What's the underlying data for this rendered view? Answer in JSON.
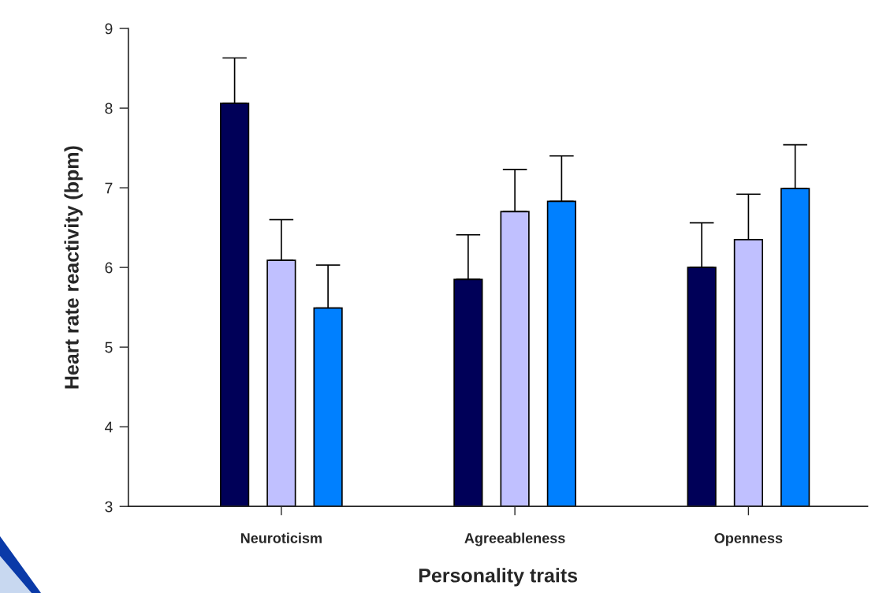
{
  "chart_data": {
    "type": "bar",
    "xlabel": "Personality traits",
    "ylabel": "Heart rate reactivity (bpm)",
    "categories": [
      "Neuroticism",
      "Agreeableness",
      "Openness"
    ],
    "series": [
      {
        "color": "#000058",
        "values": [
          8.06,
          5.85,
          6.0
        ],
        "errors": [
          [
            8.06,
            8.63
          ],
          [
            5.85,
            6.41
          ],
          [
            6.0,
            6.56
          ]
        ]
      },
      {
        "color": "#c0c0ff",
        "values": [
          6.09,
          6.7,
          6.35
        ],
        "errors": [
          [
            6.09,
            6.6
          ],
          [
            6.7,
            7.23
          ],
          [
            6.35,
            6.92
          ]
        ]
      },
      {
        "color": "#0080ff",
        "values": [
          5.49,
          6.83,
          6.99
        ],
        "errors": [
          [
            5.49,
            6.03
          ],
          [
            6.83,
            7.4
          ],
          [
            6.99,
            7.54
          ]
        ]
      }
    ],
    "ylim": [
      3,
      9
    ],
    "yticks": [
      3,
      4,
      5,
      6,
      7,
      8,
      9
    ],
    "grid": false,
    "legend": false
  }
}
